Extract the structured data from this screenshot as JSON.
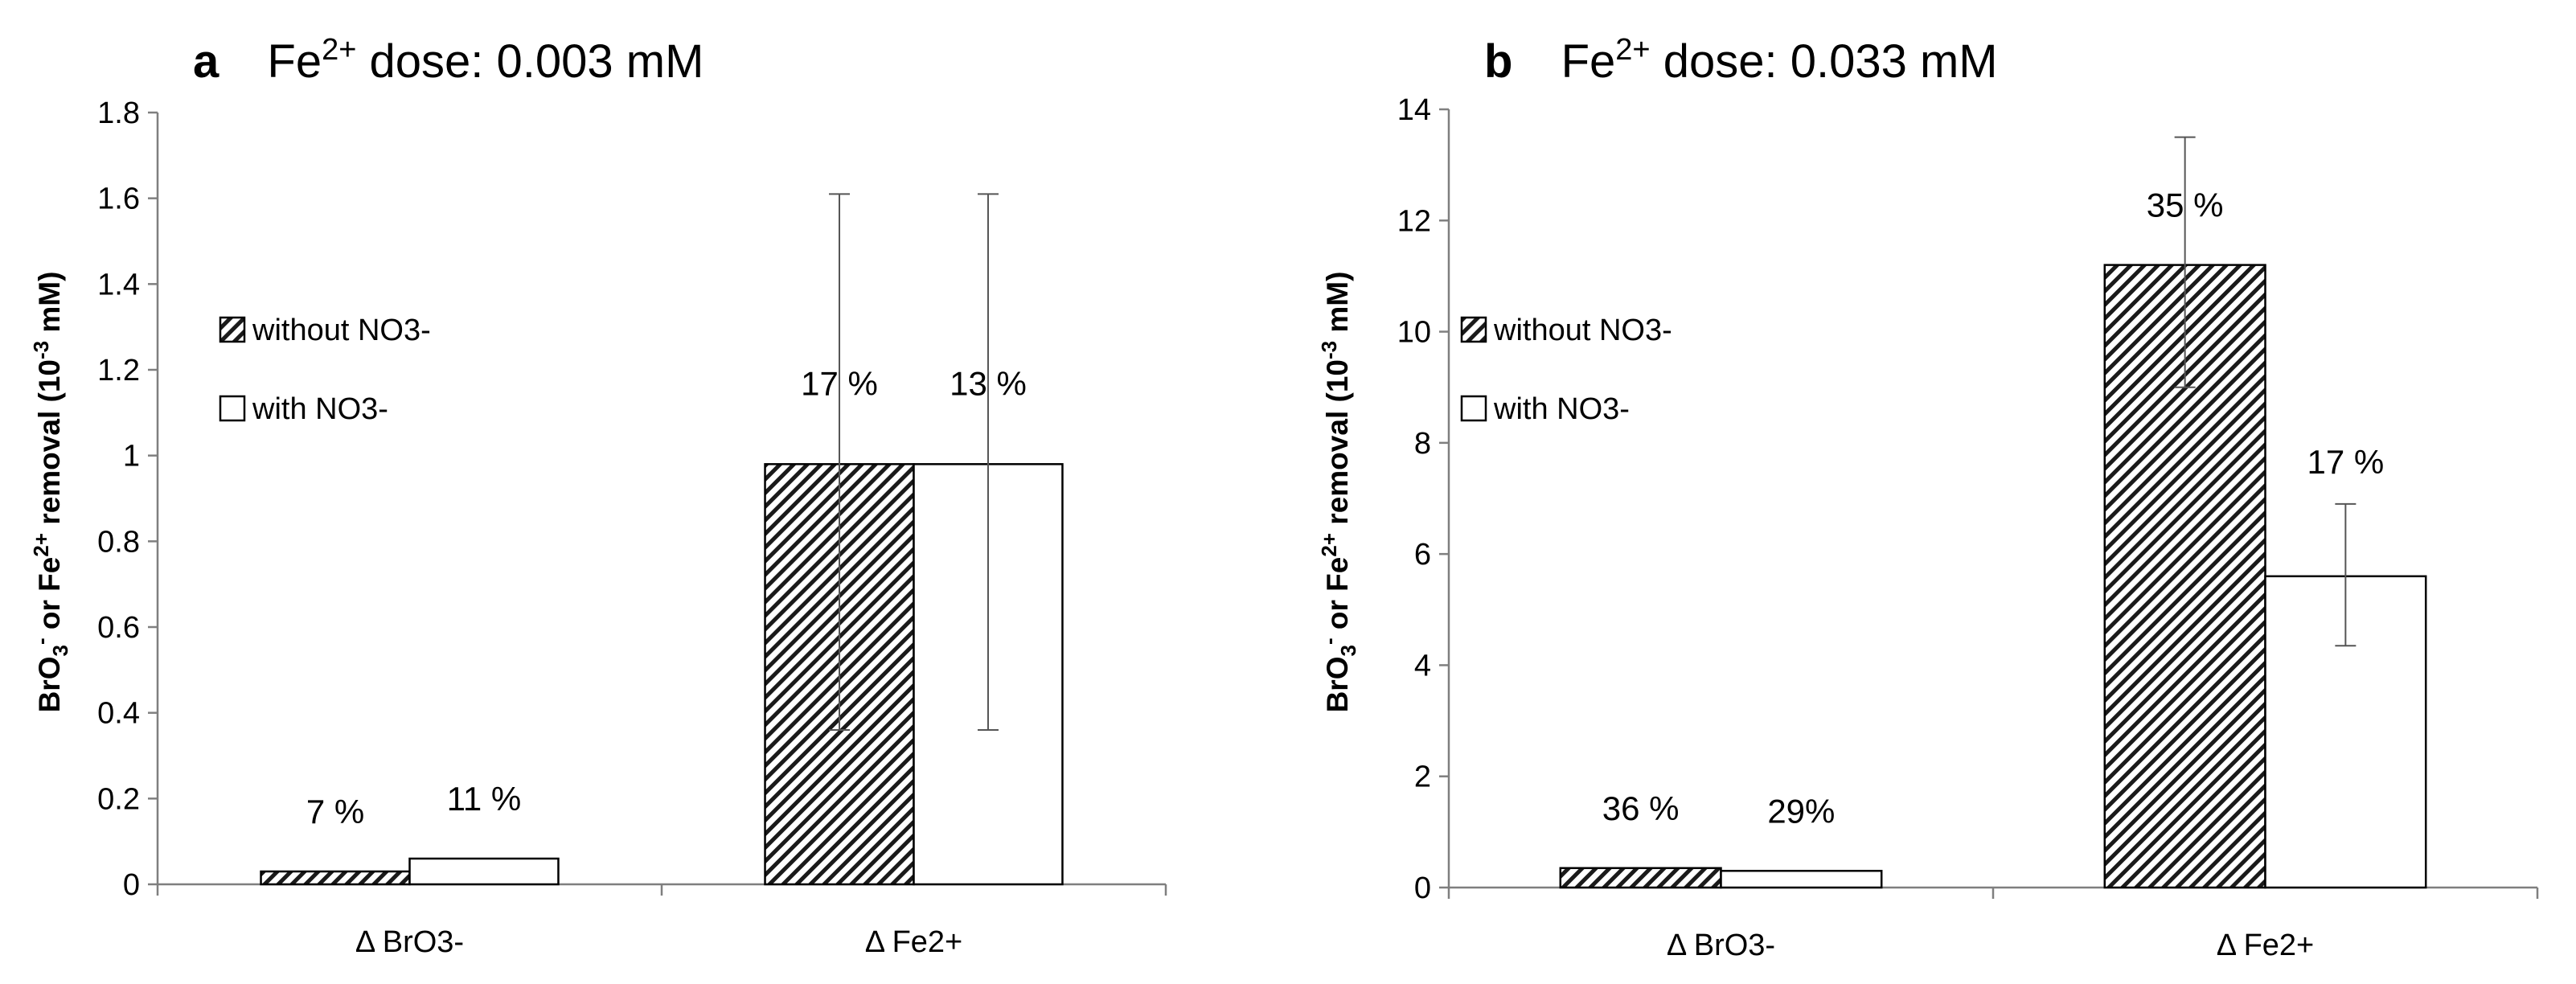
{
  "chart_data": [
    {
      "type": "bar",
      "panel": "a",
      "title_prefix": "Fe",
      "title_sup": "2+",
      "title_suffix": " dose: 0.003 mM",
      "ylabel_parts": [
        "BrO",
        "3",
        "-",
        " or Fe",
        "2+",
        " removal (10",
        "-3",
        " mM)"
      ],
      "ylim": [
        0,
        1.8
      ],
      "yticks": [
        "0",
        "0.2",
        "0.4",
        "0.6",
        "0.8",
        "1",
        "1.2",
        "1.4",
        "1.6",
        "1.8"
      ],
      "categories": [
        "Δ BrO3-",
        "Δ Fe2+"
      ],
      "series": [
        {
          "name": "without NO3-",
          "pattern": "hatched",
          "values": [
            0.03,
            0.98
          ],
          "err_low": [
            null,
            0.36
          ],
          "err_high": [
            null,
            1.61
          ],
          "labels": [
            "7 %",
            "17 %"
          ]
        },
        {
          "name": "with NO3-",
          "pattern": "open",
          "values": [
            0.06,
            0.98
          ],
          "err_low": [
            null,
            0.36
          ],
          "err_high": [
            null,
            1.61
          ],
          "labels": [
            "11 %",
            "13 %"
          ]
        }
      ],
      "legend_position": "middle-left"
    },
    {
      "type": "bar",
      "panel": "b",
      "title_prefix": "Fe",
      "title_sup": "2+",
      "title_suffix": " dose: 0.033 mM",
      "ylabel_parts": [
        "BrO",
        "3",
        "-",
        " or Fe",
        "2+",
        " removal (10",
        "-3",
        " mM)"
      ],
      "ylim": [
        0,
        14
      ],
      "yticks": [
        "0",
        "2",
        "4",
        "6",
        "8",
        "10",
        "12",
        "14"
      ],
      "categories": [
        "Δ BrO3-",
        "Δ Fe2+"
      ],
      "series": [
        {
          "name": "without NO3-",
          "pattern": "hatched",
          "values": [
            0.35,
            11.2
          ],
          "err_low": [
            null,
            9.0
          ],
          "err_high": [
            null,
            13.5
          ],
          "labels": [
            "36 %",
            "35 %"
          ]
        },
        {
          "name": "with NO3-",
          "pattern": "open",
          "values": [
            0.3,
            5.6
          ],
          "err_low": [
            null,
            4.35
          ],
          "err_high": [
            null,
            6.9
          ],
          "labels": [
            "29%",
            "17 %"
          ]
        }
      ],
      "legend_position": "middle-left"
    }
  ]
}
